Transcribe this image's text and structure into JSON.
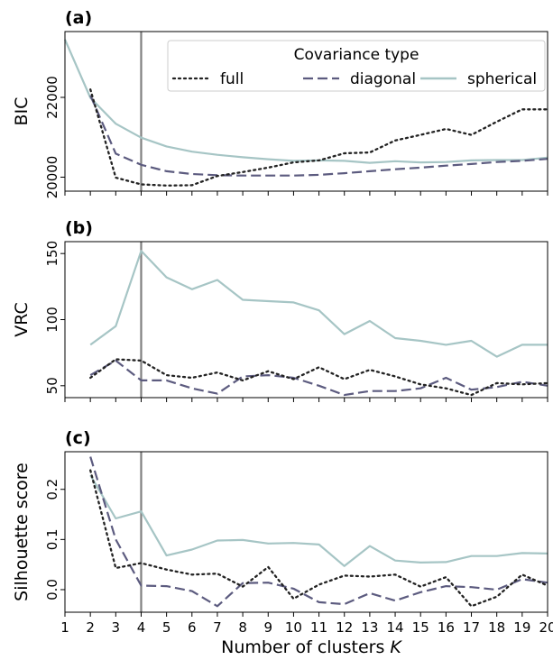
{
  "legend": {
    "title": "Covariance type",
    "entries": [
      {
        "label": "full",
        "style": "dotted",
        "color": "#222222"
      },
      {
        "label": "diagonal",
        "style": "dashed",
        "color": "#5c5b7f"
      },
      {
        "label": "spherical",
        "style": "solid",
        "color": "#a6c5c5"
      }
    ]
  },
  "xlabel_text": "Number of clusters ",
  "xlabel_var": "K",
  "chart_data": [
    {
      "panel": "(a)",
      "type": "line",
      "ylabel": "BIC",
      "x_ticks": [
        1,
        2,
        3,
        4,
        5,
        6,
        7,
        8,
        9,
        10,
        11,
        12,
        13,
        14,
        15,
        16,
        17,
        18,
        19,
        20
      ],
      "xlim": [
        1,
        20
      ],
      "ylim": [
        19650,
        23650
      ],
      "yticks": [
        20000,
        22000
      ],
      "ytick_labels": [
        "20000",
        "22000"
      ],
      "vline_x": 4,
      "series": [
        {
          "name": "full",
          "x": [
            2,
            3,
            4,
            5,
            6,
            7,
            8,
            9,
            10,
            11,
            12,
            13,
            14,
            15,
            16,
            17,
            18,
            19,
            20
          ],
          "values": [
            22200,
            19990,
            19820,
            19790,
            19800,
            20030,
            20130,
            20240,
            20370,
            20420,
            20600,
            20620,
            20920,
            21060,
            21210,
            21060,
            21390,
            21700,
            21700
          ]
        },
        {
          "name": "diagonal",
          "x": [
            2,
            3,
            4,
            5,
            6,
            7,
            8,
            9,
            10,
            11,
            12,
            13,
            14,
            15,
            16,
            17,
            18,
            19,
            20
          ],
          "values": [
            22050,
            20590,
            20310,
            20150,
            20080,
            20050,
            20040,
            20040,
            20040,
            20060,
            20100,
            20150,
            20200,
            20240,
            20290,
            20330,
            20380,
            20410,
            20460
          ]
        },
        {
          "name": "spherical",
          "x": [
            1,
            2,
            3,
            4,
            5,
            6,
            7,
            8,
            9,
            10,
            11,
            12,
            13,
            14,
            15,
            16,
            17,
            18,
            19,
            20
          ],
          "values": [
            23450,
            21990,
            21340,
            20990,
            20770,
            20640,
            20560,
            20500,
            20450,
            20410,
            20420,
            20410,
            20360,
            20400,
            20370,
            20380,
            20420,
            20430,
            20430,
            20490
          ]
        }
      ]
    },
    {
      "panel": "(b)",
      "type": "line",
      "ylabel": "VRC",
      "x_ticks": [
        1,
        2,
        3,
        4,
        5,
        6,
        7,
        8,
        9,
        10,
        11,
        12,
        13,
        14,
        15,
        16,
        17,
        18,
        19,
        20
      ],
      "xlim": [
        1,
        20
      ],
      "ylim": [
        41,
        159
      ],
      "yticks": [
        50,
        100,
        150
      ],
      "ytick_labels": [
        "50",
        "100",
        "150"
      ],
      "vline_x": 4,
      "series": [
        {
          "name": "full",
          "x": [
            2,
            3,
            4,
            5,
            6,
            7,
            8,
            9,
            10,
            11,
            12,
            13,
            14,
            15,
            16,
            17,
            18,
            19,
            20
          ],
          "values": [
            56,
            70,
            69,
            58,
            56,
            60,
            54,
            61,
            55,
            64,
            55,
            62,
            57,
            51,
            48,
            43,
            52,
            51,
            52
          ]
        },
        {
          "name": "diagonal",
          "x": [
            2,
            3,
            4,
            5,
            6,
            7,
            8,
            9,
            10,
            11,
            12,
            13,
            14,
            15,
            16,
            17,
            18,
            19,
            20
          ],
          "values": [
            58,
            69,
            54,
            54,
            48,
            44,
            57,
            58,
            56,
            50,
            43,
            46,
            46,
            48,
            56,
            47,
            49,
            53,
            50
          ]
        },
        {
          "name": "spherical",
          "x": [
            2,
            3,
            4,
            5,
            6,
            7,
            8,
            9,
            10,
            11,
            12,
            13,
            14,
            15,
            16,
            17,
            18,
            19,
            20
          ],
          "values": [
            81,
            95,
            152,
            132,
            123,
            130,
            115,
            114,
            113,
            107,
            89,
            99,
            86,
            84,
            81,
            84,
            72,
            81,
            81
          ]
        }
      ]
    },
    {
      "panel": "(c)",
      "type": "line",
      "ylabel": "Silhouette score",
      "xlabel": "Number of clusters K",
      "x_ticks": [
        1,
        2,
        3,
        4,
        5,
        6,
        7,
        8,
        9,
        10,
        11,
        12,
        13,
        14,
        15,
        16,
        17,
        18,
        19,
        20
      ],
      "xlim": [
        1,
        20
      ],
      "ylim": [
        -0.045,
        0.275
      ],
      "yticks": [
        0.0,
        0.1,
        0.2
      ],
      "ytick_labels": [
        "0.0",
        "0.1",
        "0.2"
      ],
      "vline_x": 4,
      "series": [
        {
          "name": "full",
          "x": [
            2,
            3,
            4,
            5,
            6,
            7,
            8,
            9,
            10,
            11,
            12,
            13,
            14,
            15,
            16,
            17,
            18,
            19,
            20
          ],
          "values": [
            0.238,
            0.043,
            0.053,
            0.04,
            0.03,
            0.032,
            0.006,
            0.045,
            -0.018,
            0.01,
            0.028,
            0.026,
            0.03,
            0.006,
            0.025,
            -0.033,
            -0.014,
            0.03,
            0.008
          ]
        },
        {
          "name": "diagonal",
          "x": [
            2,
            3,
            4,
            5,
            6,
            7,
            8,
            9,
            10,
            11,
            12,
            13,
            14,
            15,
            16,
            17,
            18,
            19,
            20
          ],
          "values": [
            0.265,
            0.1,
            0.008,
            0.007,
            -0.003,
            -0.033,
            0.013,
            0.014,
            0.002,
            -0.025,
            -0.029,
            -0.007,
            -0.022,
            -0.005,
            0.007,
            0.005,
            0.0,
            0.021,
            0.014
          ]
        },
        {
          "name": "spherical",
          "x": [
            2,
            3,
            4,
            5,
            6,
            7,
            8,
            9,
            10,
            11,
            12,
            13,
            14,
            15,
            16,
            17,
            18,
            19,
            20
          ],
          "values": [
            0.228,
            0.142,
            0.156,
            0.068,
            0.08,
            0.098,
            0.099,
            0.092,
            0.093,
            0.09,
            0.047,
            0.087,
            0.058,
            0.054,
            0.055,
            0.067,
            0.067,
            0.073,
            0.072
          ]
        }
      ]
    }
  ]
}
